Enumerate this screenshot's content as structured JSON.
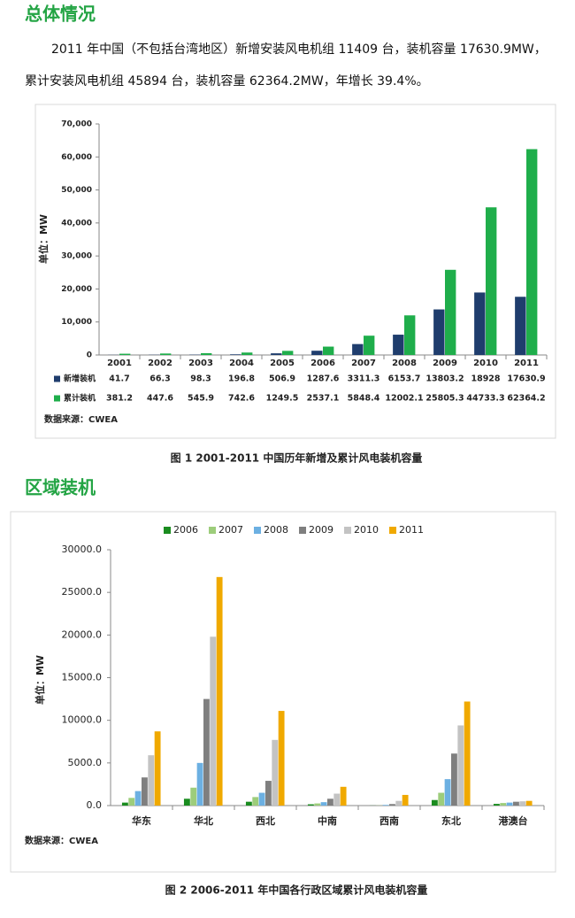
{
  "sections": [
    {
      "heading": "总体情况",
      "paragraph": [
        "2011 年中国（不包括台湾地区）新增安装风电机组 11409 台，装机容量 17630.9MW，",
        "累计安装风电机组 45894 台，装机容量 62364.2MW，年增长 39.4%。"
      ],
      "caption": "图 1 2001-2011 中国历年新增及累计风电装机容量"
    },
    {
      "heading": "区域装机",
      "caption": "图 2 2006-2011 年中国各行政区域累计风电装机容量"
    }
  ],
  "chart_data": [
    {
      "type": "bar",
      "y_label": "单位：MW",
      "source": "数据来源：CWEA",
      "data_table": true,
      "grid": false,
      "categories": [
        "2001",
        "2002",
        "2003",
        "2004",
        "2005",
        "2006",
        "2007",
        "2008",
        "2009",
        "2010",
        "2011"
      ],
      "series": [
        {
          "name": "新增装机",
          "color": "#1f3d6d",
          "values": [
            41.7,
            66.3,
            98.3,
            196.8,
            506.9,
            1287.6,
            3311.3,
            6153.7,
            13803.2,
            18928.0,
            17630.9
          ]
        },
        {
          "name": "累计装机",
          "color": "#1fae4b",
          "values": [
            381.2,
            447.6,
            545.9,
            742.6,
            1249.5,
            2537.1,
            5848.4,
            12002.1,
            25805.3,
            44733.3,
            62364.2
          ]
        }
      ],
      "ylim": [
        0,
        70000
      ],
      "yticks": [
        0,
        {
          "value": 10000,
          "label": "10,000"
        },
        {
          "value": 20000,
          "label": "20,000"
        },
        {
          "value": 30000,
          "label": "30,000"
        },
        {
          "value": 40000,
          "label": "40,000"
        },
        {
          "value": 50000,
          "label": "50,000"
        },
        {
          "value": 60000,
          "label": "60,000"
        },
        {
          "value": 70000,
          "label": "70,000"
        }
      ]
    },
    {
      "type": "bar",
      "y_label": "单位：MW",
      "source": "数据来源：CWEA",
      "legend": "top",
      "grid": false,
      "categories": [
        "华东",
        "华北",
        "西北",
        "中南",
        "西南",
        "东北",
        "港澳台"
      ],
      "series": [
        {
          "name": "2006",
          "color": "#1a8c1f",
          "values": [
            350,
            800,
            450,
            150,
            10,
            650,
            200
          ]
        },
        {
          "name": "2007",
          "color": "#9dcd7b",
          "values": [
            900,
            2100,
            1000,
            250,
            20,
            1500,
            300
          ]
        },
        {
          "name": "2008",
          "color": "#6cb0e2",
          "values": [
            1700,
            5000,
            1500,
            400,
            80,
            3100,
            350
          ]
        },
        {
          "name": "2009",
          "color": "#7f7f7f",
          "values": [
            3300,
            12500,
            2900,
            800,
            180,
            6100,
            450
          ]
        },
        {
          "name": "2010",
          "color": "#c3c3c3",
          "values": [
            5900,
            19800,
            7700,
            1400,
            550,
            9400,
            500
          ]
        },
        {
          "name": "2011",
          "color": "#f0a900",
          "values": [
            8700,
            26800,
            11100,
            2200,
            1250,
            12200,
            550
          ]
        }
      ],
      "ylim": [
        0,
        30000
      ],
      "yticks": [
        {
          "value": 0,
          "label": "0.0"
        },
        {
          "value": 5000,
          "label": "5000.0"
        },
        {
          "value": 10000,
          "label": "10000.0"
        },
        {
          "value": 15000,
          "label": "15000.0"
        },
        {
          "value": 20000,
          "label": "20000.0"
        },
        {
          "value": 25000,
          "label": "25000.0"
        },
        {
          "value": 30000,
          "label": "30000.0"
        }
      ]
    }
  ]
}
